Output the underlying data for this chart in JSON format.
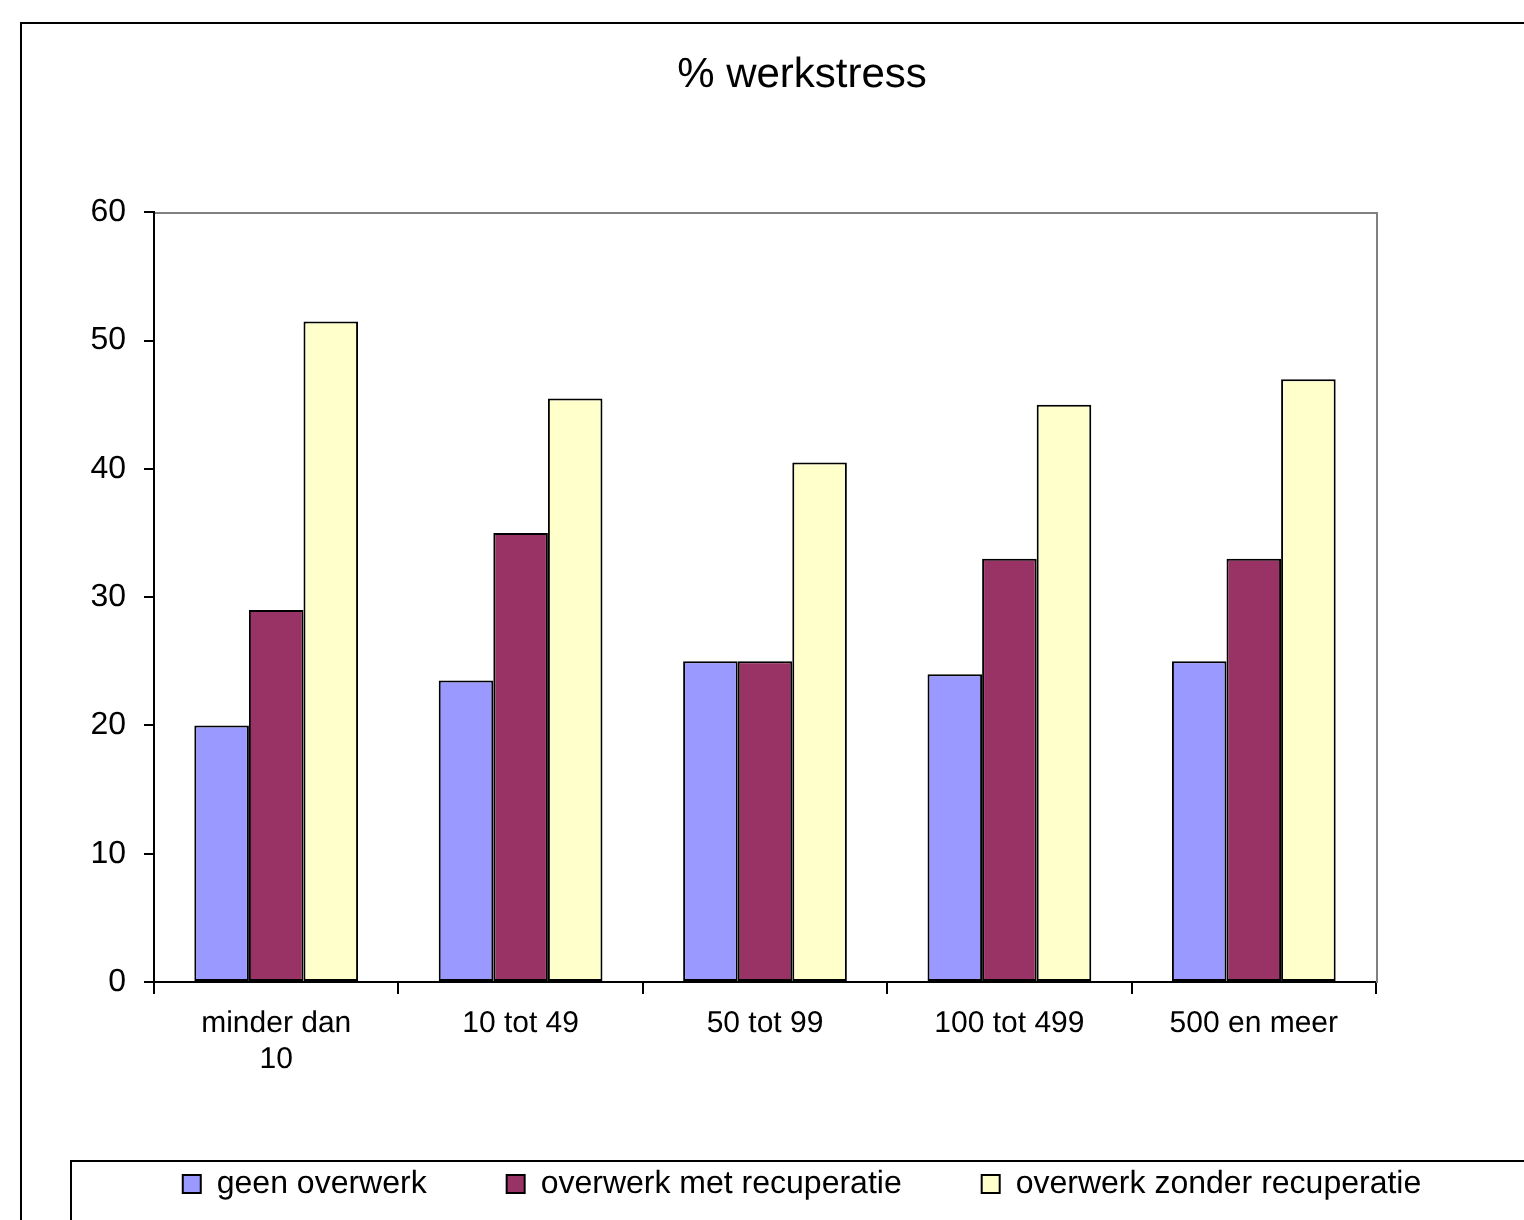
{
  "chart_data": {
    "type": "bar",
    "title": "% werkstress",
    "categories": [
      "minder dan 10",
      "10 tot 49",
      "50 tot 99",
      "100 tot 499",
      "500 en meer"
    ],
    "series": [
      {
        "name": "geen overwerk",
        "color": "#9999ff",
        "values": [
          20,
          23.5,
          25,
          24,
          25
        ]
      },
      {
        "name": "overwerk met recuperatie",
        "color": "#993366",
        "values": [
          29,
          35,
          25,
          33,
          33
        ]
      },
      {
        "name": "overwerk zonder recuperatie",
        "color": "#ffffcc",
        "values": [
          51.5,
          45.5,
          40.5,
          45,
          47
        ]
      }
    ],
    "ylim": [
      0,
      60
    ],
    "yticks": [
      0,
      10,
      20,
      30,
      40,
      50,
      60
    ],
    "grid": false,
    "legend": "bottom"
  }
}
